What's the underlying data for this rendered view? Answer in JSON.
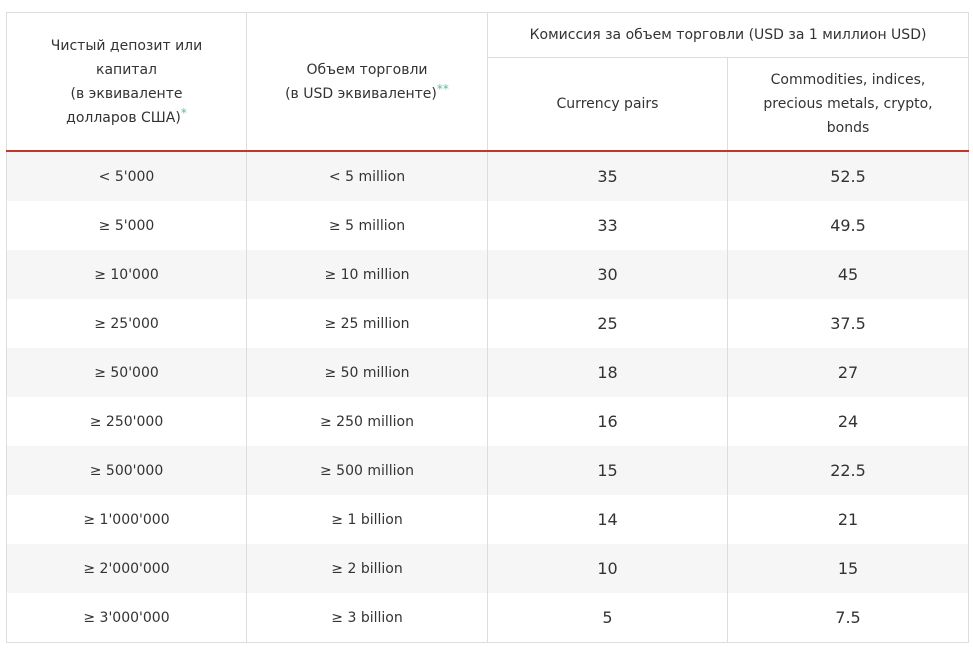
{
  "header": {
    "col1": [
      "Чистый депозит или",
      "капитал",
      "(в эквиваленте",
      "долларов США)"
    ],
    "col1_mark": "*",
    "col2": [
      "Объем торговли",
      "(в USD эквиваленте)"
    ],
    "col2_mark": "**",
    "group": "Комиссия за объем торговли (USD за 1 миллион USD)",
    "col3": [
      "Currency pairs"
    ],
    "col4": [
      "Commodities, indices,",
      "precious metals, crypto,",
      "bonds"
    ]
  },
  "rows": [
    {
      "deposit": "< 5'000",
      "volume": "< 5 million",
      "fx": "35",
      "other": "52.5"
    },
    {
      "deposit": "≥ 5'000",
      "volume": "≥ 5 million",
      "fx": "33",
      "other": "49.5"
    },
    {
      "deposit": "≥ 10'000",
      "volume": "≥ 10 million",
      "fx": "30",
      "other": "45"
    },
    {
      "deposit": "≥ 25'000",
      "volume": "≥ 25 million",
      "fx": "25",
      "other": "37.5"
    },
    {
      "deposit": "≥ 50'000",
      "volume": "≥ 50 million",
      "fx": "18",
      "other": "27"
    },
    {
      "deposit": "≥ 250'000",
      "volume": "≥ 250 million",
      "fx": "16",
      "other": "24"
    },
    {
      "deposit": "≥ 500'000",
      "volume": "≥ 500 million",
      "fx": "15",
      "other": "22.5"
    },
    {
      "deposit": "≥ 1'000'000",
      "volume": "≥ 1 billion",
      "fx": "14",
      "other": "21"
    },
    {
      "deposit": "≥ 2'000'000",
      "volume": "≥ 2 billion",
      "fx": "10",
      "other": "15"
    },
    {
      "deposit": "≥ 3'000'000",
      "volume": "≥ 3 billion",
      "fx": "5",
      "other": "7.5"
    }
  ],
  "colors": {
    "header_rule": "#c0392b",
    "footnote_mark": "#5bbfa6",
    "stripe": "#f6f6f6",
    "border": "#dddddd",
    "text": "#333333"
  }
}
